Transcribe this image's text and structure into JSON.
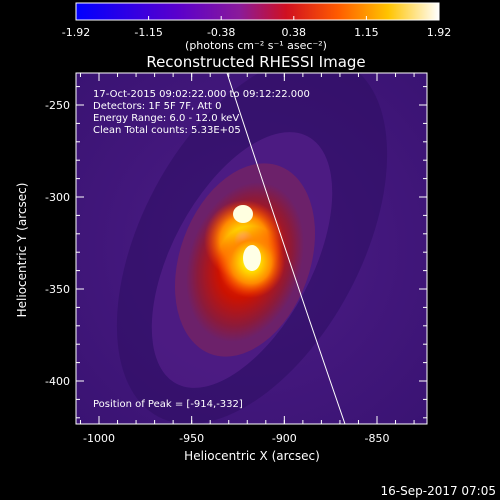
{
  "colorbar": {
    "min": -1.92,
    "max": 1.92,
    "tick_labels": [
      "-1.92",
      "-1.15",
      "-0.38",
      "0.38",
      "1.15",
      "1.92"
    ],
    "units_label": "(photons cm⁻² s⁻¹ asec⁻²)",
    "colors": [
      "#0000ff",
      "#7a00c8",
      "#cc1010",
      "#ff6600",
      "#ffd000",
      "#ffffff"
    ]
  },
  "plot": {
    "title": "Reconstructed RHESSI Image",
    "xlabel": "Heliocentric X (arcsec)",
    "ylabel": "Heliocentric Y (arcsec)",
    "x_ticks": [
      "-1000",
      "-950",
      "-900",
      "-850"
    ],
    "y_ticks": [
      "-250",
      "-300",
      "-350",
      "-400"
    ],
    "info_lines": [
      "17-Oct-2015 09:02:22.000 to 09:12:22.000",
      "Detectors: 1F 5F 7F, Att 0",
      "Energy Range: 6.0 - 12.0 keV",
      "Clean    Total counts: 5.33E+05"
    ],
    "peak_text": "Position of Peak = [-914,-332]"
  },
  "footer": {
    "timestamp": "16-Sep-2017 07:05"
  }
}
